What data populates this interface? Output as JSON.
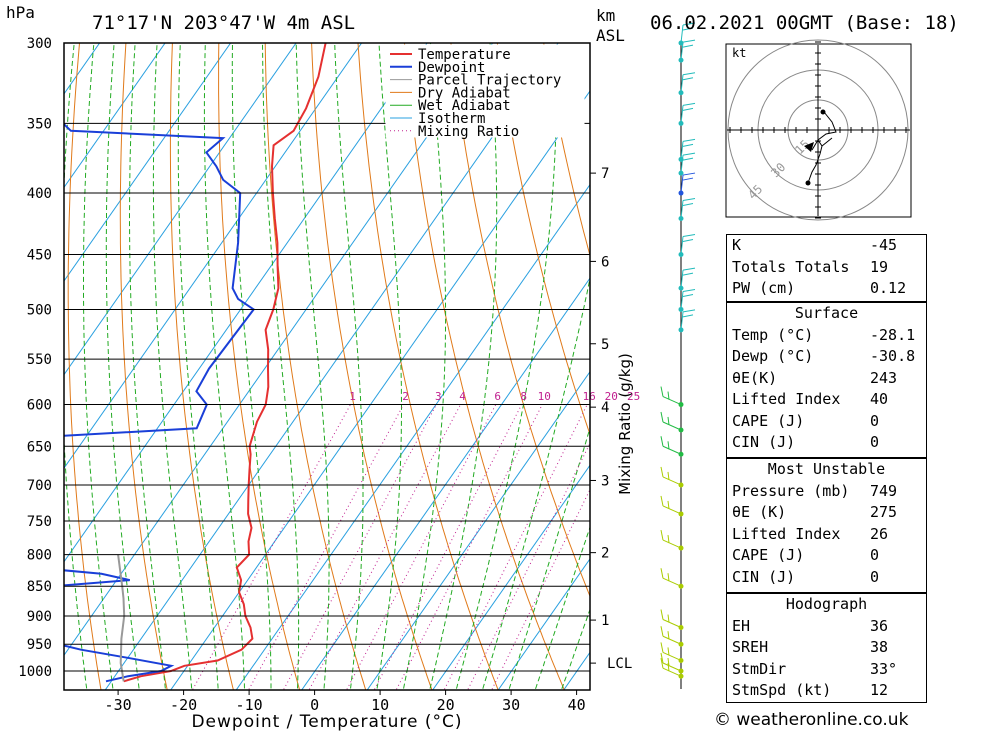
{
  "header": {
    "location": "71°17'N  203°47'W  4m  ASL",
    "datetime": "06.02.2021  00GMT  (Base: 18)",
    "pressure_unit": "hPa",
    "height_unit_top": "km",
    "height_unit_bottom": "ASL"
  },
  "copyright": "© weatheronline.co.uk",
  "colors": {
    "temperature": "#e53030",
    "dewpoint": "#1a3fd8",
    "parcel": "#999999",
    "dry_adiabat": "#e07a1a",
    "wet_adiabat": "#22aa22",
    "isotherm": "#2aa0e0",
    "mixing_ratio": "#c0208f",
    "wind_line": "#00bbbb"
  },
  "hodograph": {
    "unit": "kt",
    "ring_labels": [
      "15",
      "30",
      "45"
    ]
  },
  "indices": {
    "top": [
      {
        "label": "K",
        "value": "-45"
      },
      {
        "label": "Totals Totals",
        "value": "19"
      },
      {
        "label": "PW (cm)",
        "value": "0.12"
      }
    ],
    "surface": {
      "title": "Surface",
      "rows": [
        {
          "label": "Temp (°C)",
          "value": "-28.1"
        },
        {
          "label": "Dewp (°C)",
          "value": "-30.8"
        },
        {
          "label": "θE(K)",
          "value": "243"
        },
        {
          "label": "Lifted Index",
          "value": "40"
        },
        {
          "label": "CAPE (J)",
          "value": "0"
        },
        {
          "label": "CIN (J)",
          "value": "0"
        }
      ]
    },
    "most_unstable": {
      "title": "Most Unstable",
      "rows": [
        {
          "label": "Pressure (mb)",
          "value": "749"
        },
        {
          "label": "θE (K)",
          "value": "275"
        },
        {
          "label": "Lifted Index",
          "value": "26"
        },
        {
          "label": "CAPE (J)",
          "value": "0"
        },
        {
          "label": "CIN (J)",
          "value": "0"
        }
      ]
    },
    "hodograph_box": {
      "title": "Hodograph",
      "rows": [
        {
          "label": "EH",
          "value": "36"
        },
        {
          "label": "SREH",
          "value": "38"
        },
        {
          "label": "StmDir",
          "value": "33°"
        },
        {
          "label": "StmSpd (kt)",
          "value": "12"
        }
      ]
    }
  },
  "chart_data": {
    "type": "line",
    "subtype": "skew-T log-P diagram",
    "xlabel": "Dewpoint / Temperature (°C)",
    "ylabel": "hPa",
    "right_label": "Mixing Ratio (g/kg)",
    "x_ticks": [
      -30,
      -20,
      -10,
      0,
      10,
      20,
      30,
      40
    ],
    "p_ticks": [
      300,
      350,
      400,
      450,
      500,
      550,
      600,
      650,
      700,
      750,
      800,
      850,
      900,
      950,
      1000
    ],
    "km_ticks": [
      {
        "label": "7",
        "p": 385
      },
      {
        "label": "6",
        "p": 456
      },
      {
        "label": "5",
        "p": 534
      },
      {
        "label": "4",
        "p": 603
      },
      {
        "label": "3",
        "p": 694
      },
      {
        "label": "2",
        "p": 797
      },
      {
        "label": "1",
        "p": 907
      },
      {
        "label": "LCL",
        "p": 985
      }
    ],
    "mixing_ratio_labels": [
      "1",
      "2",
      "3",
      "4",
      "6",
      "8",
      "10",
      "16",
      "20",
      "25"
    ],
    "legend": {
      "placement": "top",
      "entries": [
        "Temperature",
        "Dewpoint",
        "Parcel Trajectory",
        "Dry Adiabat",
        "Wet Adiabat",
        "Isotherm",
        "Mixing Ratio"
      ]
    },
    "series": [
      {
        "name": "Temperature",
        "points": [
          [
            1020,
            -28.1
          ],
          [
            1010,
            -26.0
          ],
          [
            1000,
            -22.0
          ],
          [
            990,
            -20.5
          ],
          [
            980,
            -16.0
          ],
          [
            960,
            -13.5
          ],
          [
            940,
            -13.0
          ],
          [
            920,
            -14.5
          ],
          [
            900,
            -16.5
          ],
          [
            880,
            -18.0
          ],
          [
            860,
            -20.0
          ],
          [
            840,
            -21.0
          ],
          [
            820,
            -23.0
          ],
          [
            800,
            -22.5
          ],
          [
            780,
            -24.0
          ],
          [
            760,
            -25.0
          ],
          [
            740,
            -27.0
          ],
          [
            720,
            -28.5
          ],
          [
            700,
            -30.0
          ],
          [
            680,
            -31.5
          ],
          [
            660,
            -33.0
          ],
          [
            650,
            -34.0
          ],
          [
            620,
            -35.5
          ],
          [
            600,
            -36.0
          ],
          [
            580,
            -37.5
          ],
          [
            560,
            -39.5
          ],
          [
            540,
            -41.5
          ],
          [
            520,
            -44.0
          ],
          [
            500,
            -45.0
          ],
          [
            480,
            -46.5
          ],
          [
            460,
            -49.0
          ],
          [
            440,
            -51.5
          ],
          [
            420,
            -54.5
          ],
          [
            400,
            -57.5
          ],
          [
            380,
            -60.5
          ],
          [
            365,
            -62.5
          ],
          [
            355,
            -61.0
          ],
          [
            340,
            -61.5
          ],
          [
            320,
            -63.0
          ],
          [
            300,
            -65.5
          ]
        ]
      },
      {
        "name": "Dewpoint",
        "points": [
          [
            1020,
            -30.8
          ],
          [
            1010,
            -28.0
          ],
          [
            1000,
            -23.5
          ],
          [
            990,
            -22.5
          ],
          [
            975,
            -30.0
          ],
          [
            960,
            -38.0
          ],
          [
            945,
            -44.0
          ],
          [
            900,
            -53.0
          ],
          [
            870,
            -59.0
          ],
          [
            860,
            -58.0
          ],
          [
            850,
            -49.0
          ],
          [
            840,
            -38.0
          ],
          [
            830,
            -43.0
          ],
          [
            820,
            -54.0
          ],
          [
            810,
            -61.0
          ],
          [
            800,
            -63.0
          ],
          [
            640,
            -70.0
          ],
          [
            628,
            -44.0
          ],
          [
            600,
            -45.0
          ],
          [
            585,
            -48.0
          ],
          [
            560,
            -48.5
          ],
          [
            500,
            -48.0
          ],
          [
            490,
            -51.5
          ],
          [
            480,
            -53.5
          ],
          [
            440,
            -57.5
          ],
          [
            400,
            -62.5
          ],
          [
            390,
            -66.5
          ],
          [
            380,
            -69.0
          ],
          [
            370,
            -72.0
          ],
          [
            360,
            -71.0
          ],
          [
            355,
            -95.0
          ],
          [
            345,
            -99.0
          ],
          [
            320,
            -103.0
          ],
          [
            300,
            -106.0
          ]
        ]
      },
      {
        "name": "Parcel Trajectory",
        "points": [
          [
            1020,
            -28.1
          ],
          [
            985,
            -30.5
          ],
          [
            940,
            -33.0
          ],
          [
            900,
            -35.0
          ],
          [
            870,
            -37.0
          ],
          [
            850,
            -38.5
          ],
          [
            800,
            -42.5
          ]
        ]
      }
    ]
  }
}
